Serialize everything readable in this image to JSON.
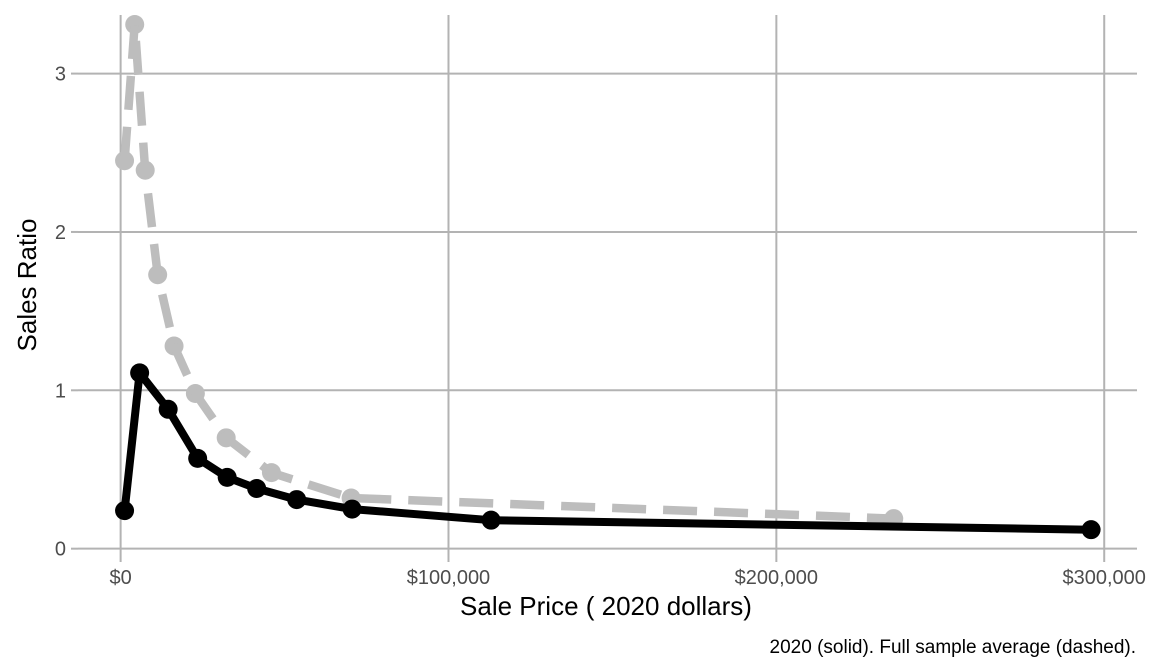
{
  "chart_data": {
    "type": "line",
    "xlabel": "Sale Price ( 2020 dollars)",
    "ylabel": "Sales Ratio",
    "caption": "2020 (solid). Full sample average (dashed).",
    "xlim": [
      -13000,
      310000
    ],
    "ylim": [
      -0.04,
      3.37
    ],
    "x_ticks": [
      {
        "value": 0,
        "label": "$0"
      },
      {
        "value": 100000,
        "label": "$100,000"
      },
      {
        "value": 200000,
        "label": "$200,000"
      },
      {
        "value": 300000,
        "label": "$300,000"
      }
    ],
    "y_ticks": [
      {
        "value": 0,
        "label": "0"
      },
      {
        "value": 1,
        "label": "1"
      },
      {
        "value": 2,
        "label": "2"
      },
      {
        "value": 3,
        "label": "3"
      }
    ],
    "grid": true,
    "series": [
      {
        "style": "dashed",
        "color": "#bdbdbd",
        "points": [
          {
            "x": 1200,
            "y": 2.45
          },
          {
            "x": 4300,
            "y": 3.31
          },
          {
            "x": 7500,
            "y": 2.39
          },
          {
            "x": 11300,
            "y": 1.73
          },
          {
            "x": 16300,
            "y": 1.28
          },
          {
            "x": 22800,
            "y": 0.98
          },
          {
            "x": 32200,
            "y": 0.7
          },
          {
            "x": 46000,
            "y": 0.48
          },
          {
            "x": 70300,
            "y": 0.32
          },
          {
            "x": 235800,
            "y": 0.19
          }
        ]
      },
      {
        "style": "solid",
        "color": "#000000",
        "points": [
          {
            "x": 1200,
            "y": 0.24
          },
          {
            "x": 5800,
            "y": 1.11
          },
          {
            "x": 14500,
            "y": 0.88
          },
          {
            "x": 23500,
            "y": 0.57
          },
          {
            "x": 32500,
            "y": 0.45
          },
          {
            "x": 41500,
            "y": 0.38
          },
          {
            "x": 53700,
            "y": 0.31
          },
          {
            "x": 70600,
            "y": 0.25
          },
          {
            "x": 113000,
            "y": 0.18
          },
          {
            "x": 296000,
            "y": 0.12
          }
        ]
      }
    ]
  }
}
